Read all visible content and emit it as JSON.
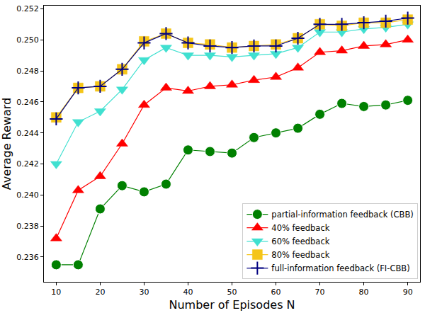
{
  "chart_data": {
    "type": "line",
    "x_label": "Number of Episodes N",
    "y_label": "Average Reward",
    "x": [
      10,
      15,
      20,
      25,
      30,
      35,
      40,
      45,
      50,
      55,
      60,
      65,
      70,
      75,
      80,
      85,
      90
    ],
    "xlim": [
      7.2,
      92.8
    ],
    "xticks": [
      10,
      20,
      30,
      40,
      50,
      60,
      70,
      80,
      90
    ],
    "ylim": [
      0.2344,
      0.2522
    ],
    "yticks": [
      0.236,
      0.238,
      0.24,
      0.242,
      0.244,
      0.246,
      0.248,
      0.25,
      0.252
    ],
    "grid": false,
    "legend": "lower right",
    "series": [
      {
        "name": "partial-information feedback (CBB)",
        "color": "#008000",
        "marker": "circle",
        "values": [
          0.2355,
          0.2355,
          0.2391,
          0.2406,
          0.2402,
          0.2407,
          0.2429,
          0.2428,
          0.2427,
          0.2437,
          0.244,
          0.2443,
          0.2452,
          0.2459,
          0.2457,
          0.2458,
          0.2461
        ]
      },
      {
        "name": "40% feedback",
        "color": "#ff0000",
        "marker": "triangle-up",
        "values": [
          0.2372,
          0.2403,
          0.2412,
          0.2433,
          0.2458,
          0.2469,
          0.2467,
          0.247,
          0.2471,
          0.2474,
          0.2476,
          0.2482,
          0.2492,
          0.2493,
          0.2496,
          0.2497,
          0.25
        ]
      },
      {
        "name": "60% feedback",
        "color": "#40e0d0",
        "marker": "triangle-down",
        "values": [
          0.242,
          0.2447,
          0.2454,
          0.2468,
          0.2487,
          0.2495,
          0.249,
          0.249,
          0.2489,
          0.249,
          0.2491,
          0.2495,
          0.2505,
          0.2505,
          0.2507,
          0.2508,
          0.251
        ]
      },
      {
        "name": "80% feedback",
        "color": "#f5c518",
        "marker": "square",
        "values": [
          0.245,
          0.2469,
          0.247,
          0.2481,
          0.2499,
          0.2504,
          0.2498,
          0.2497,
          0.2495,
          0.2496,
          0.2497,
          0.2501,
          0.251,
          0.2509,
          0.2511,
          0.2511,
          0.2513
        ]
      },
      {
        "name": "full-information feedback (FI-CBB)",
        "color": "#000080",
        "marker": "cross",
        "values": [
          0.2449,
          0.2469,
          0.247,
          0.2481,
          0.2498,
          0.2504,
          0.2498,
          0.2496,
          0.2495,
          0.2496,
          0.2496,
          0.2501,
          0.251,
          0.251,
          0.2511,
          0.2512,
          0.2514
        ]
      }
    ]
  }
}
